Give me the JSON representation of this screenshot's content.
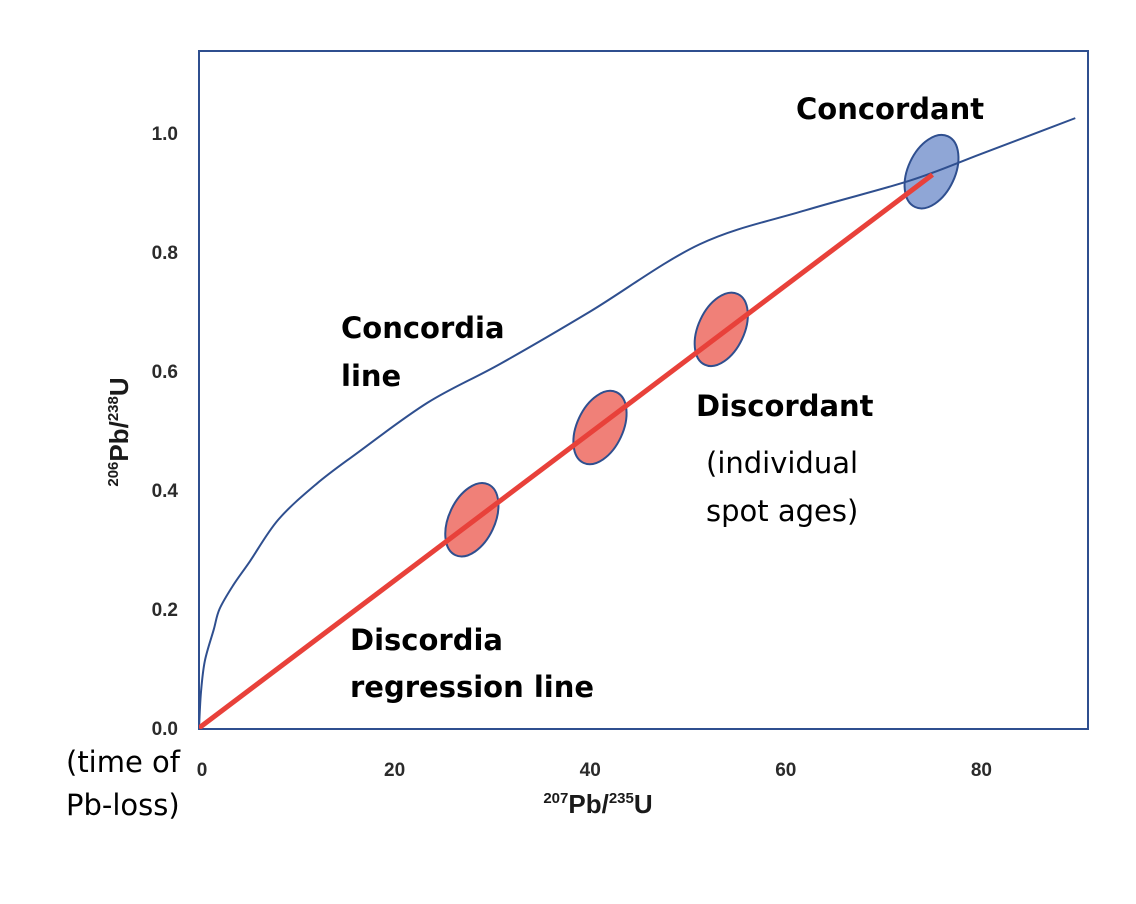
{
  "chart_data": {
    "type": "line",
    "title": "",
    "xlabel": {
      "pre_sup": "207",
      "base": "Pb/",
      "mid_sup": "235",
      "end": "U"
    },
    "ylabel": {
      "pre_sup": "206",
      "base": "Pb/",
      "mid_sup": "238",
      "end": "U"
    },
    "xlim": [
      0,
      91
    ],
    "ylim": [
      0,
      1.15
    ],
    "x_ticks": [
      0,
      20,
      40,
      60,
      80
    ],
    "x_tick_labels": [
      "0",
      "20",
      "40",
      "60",
      "80"
    ],
    "y_ticks": [
      0.0,
      0.2,
      0.4,
      0.6,
      0.8,
      1.0
    ],
    "y_tick_labels": [
      "0.0",
      "0.2",
      "0.4",
      "0.6",
      "0.8",
      "1.0"
    ],
    "grid": false,
    "series": [
      {
        "name": "Concordia line",
        "kind": "curve",
        "color": "#2f4f8f",
        "points": [
          [
            0,
            0
          ],
          [
            0.2,
            0.06
          ],
          [
            0.6,
            0.113
          ],
          [
            1.5,
            0.165
          ],
          [
            2.1,
            0.2
          ],
          [
            3.5,
            0.24
          ],
          [
            5.2,
            0.28
          ],
          [
            8.1,
            0.35
          ],
          [
            12,
            0.41
          ],
          [
            16,
            0.46
          ],
          [
            23.4,
            0.547
          ],
          [
            30.8,
            0.612
          ],
          [
            40,
            0.7
          ],
          [
            51.2,
            0.813
          ],
          [
            62,
            0.87
          ],
          [
            72.7,
            0.92
          ],
          [
            80,
            0.965
          ],
          [
            89.6,
            1.025
          ]
        ]
      },
      {
        "name": "Discordia regression line",
        "kind": "line",
        "color": "#e8413a",
        "points": [
          [
            0,
            0
          ],
          [
            75,
            0.93
          ]
        ]
      }
    ],
    "ellipses": [
      {
        "name": "discordant-spot-1",
        "x": 27.9,
        "y": 0.35,
        "fill": "#f08078",
        "group": "Discordant"
      },
      {
        "name": "discordant-spot-2",
        "x": 41.0,
        "y": 0.505,
        "fill": "#f08078",
        "group": "Discordant"
      },
      {
        "name": "discordant-spot-3",
        "x": 53.4,
        "y": 0.67,
        "fill": "#f08078",
        "group": "Discordant"
      },
      {
        "name": "concordant-spot",
        "x": 74.9,
        "y": 0.935,
        "fill": "#8fa6d6",
        "group": "Concordant"
      }
    ],
    "annotations": [
      {
        "id": "concordant",
        "lines": [
          "Concordant"
        ],
        "bold": true
      },
      {
        "id": "concordia",
        "lines": [
          "Concordia",
          "line"
        ],
        "bold": true
      },
      {
        "id": "discordant",
        "lines": [
          "Discordant"
        ],
        "bold": true
      },
      {
        "id": "spot-ages",
        "lines": [
          "(individual",
          "spot ages)"
        ],
        "bold": false
      },
      {
        "id": "discordia",
        "lines": [
          "Discordia",
          "regression line"
        ],
        "bold": true
      },
      {
        "id": "pb-loss",
        "lines": [
          "(time of",
          "Pb-loss)"
        ],
        "bold": false
      }
    ],
    "colors": {
      "frame": "#2f4f8f",
      "ellipse_stroke": "#2f4f8f"
    }
  }
}
